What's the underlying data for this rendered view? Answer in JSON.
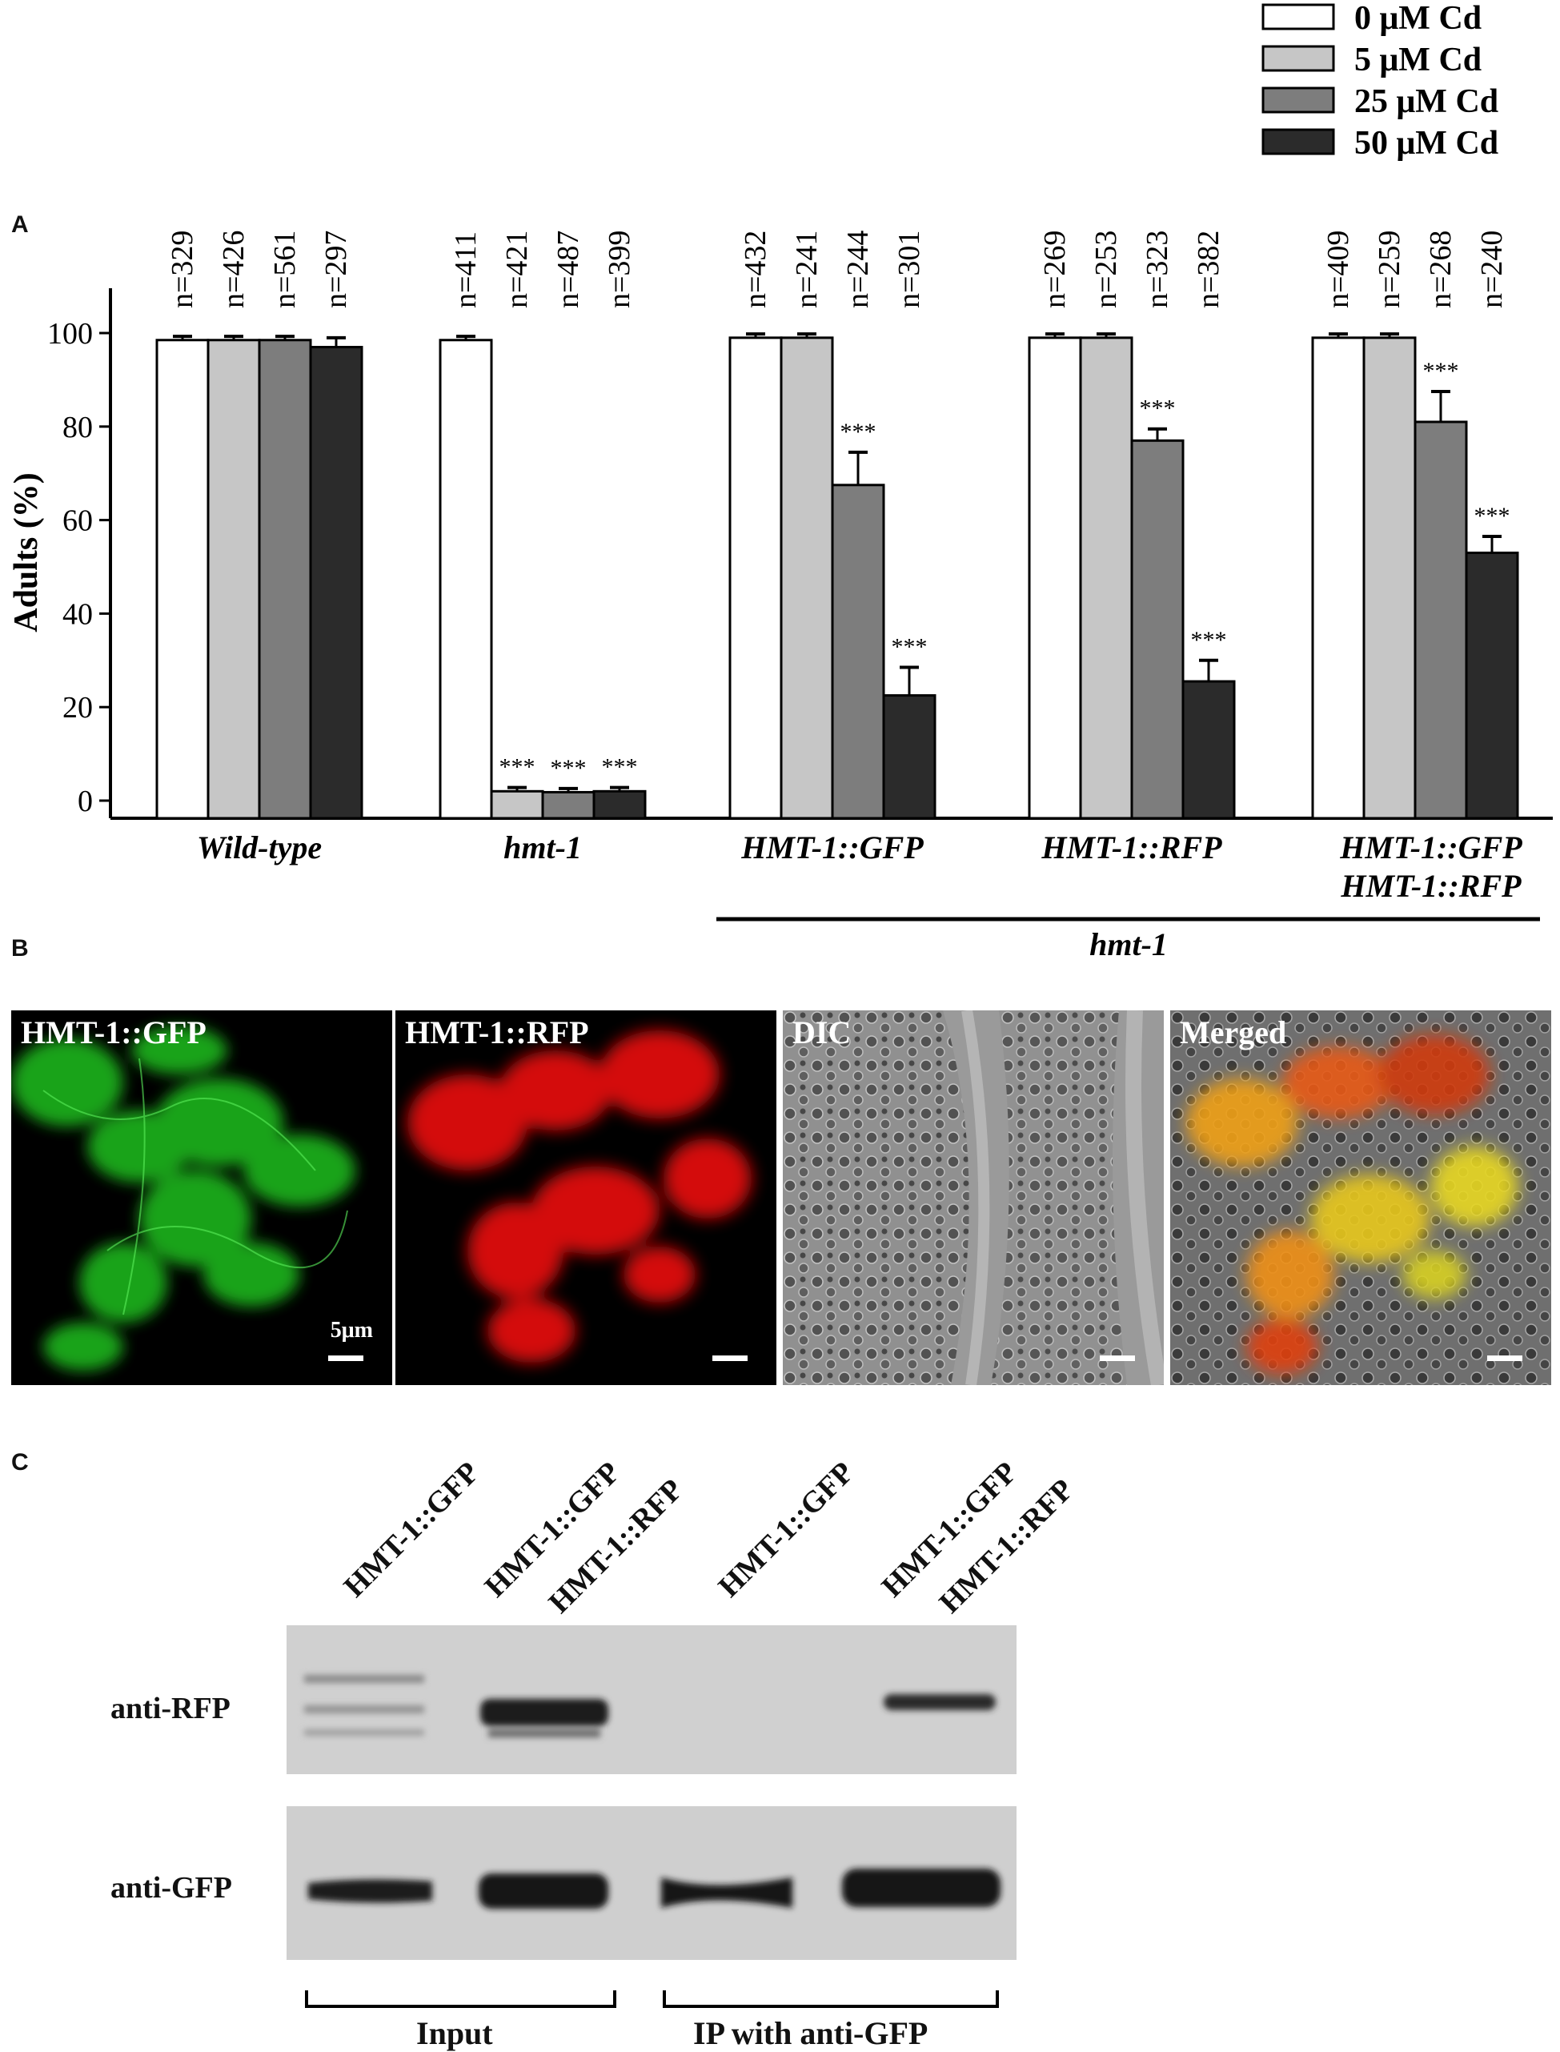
{
  "panels": {
    "a": "A",
    "b": "B",
    "c": "C"
  },
  "chart_data": {
    "type": "bar",
    "ylabel": "Adults (%)",
    "ylim": [
      0,
      100
    ],
    "yticks": [
      0,
      20,
      40,
      60,
      80,
      100
    ],
    "categories": [
      "Wild-type",
      "hmt-1",
      "HMT-1::GFP",
      "HMT-1::RFP",
      "HMT-1::GFP HMT-1::RFP"
    ],
    "category_lines": [
      [
        "Wild-type"
      ],
      [
        "hmt-1"
      ],
      [
        "HMT-1::GFP"
      ],
      [
        "HMT-1::RFP"
      ],
      [
        "HMT-1::GFP",
        "HMT-1::RFP"
      ]
    ],
    "group_bracket": {
      "label": "hmt-1",
      "categories": [
        "HMT-1::GFP",
        "HMT-1::RFP",
        "HMT-1::GFP HMT-1::RFP"
      ]
    },
    "legend": {
      "placement": "top-right"
    },
    "series": [
      {
        "name": "0 μM Cd",
        "color": "#ffffff",
        "values": [
          98.5,
          98.5,
          99,
          99,
          99
        ],
        "errors": [
          0.8,
          0.8,
          0.8,
          0.8,
          0.8
        ],
        "n": [
          "n=329",
          "n=411",
          "n=432",
          "n=269",
          "n=409"
        ],
        "sig": [
          "",
          "",
          "",
          "",
          ""
        ]
      },
      {
        "name": "5 μM Cd",
        "color": "#c6c6c6",
        "values": [
          98.5,
          2,
          99,
          99,
          99
        ],
        "errors": [
          0.8,
          0.8,
          0.8,
          0.8,
          0.8
        ],
        "n": [
          "n=426",
          "n=421",
          "n=241",
          "n=253",
          "n=259"
        ],
        "sig": [
          "",
          "***",
          "",
          "",
          ""
        ]
      },
      {
        "name": "25 μM Cd",
        "color": "#7d7d7d",
        "values": [
          98.5,
          1.8,
          67.5,
          77,
          81
        ],
        "errors": [
          0.8,
          0.8,
          7,
          2.5,
          6.5
        ],
        "n": [
          "n=561",
          "n=487",
          "n=244",
          "n=323",
          "n=268"
        ],
        "sig": [
          "",
          "***",
          "***",
          "***",
          "***"
        ]
      },
      {
        "name": "50 μM Cd",
        "color": "#2b2b2b",
        "values": [
          97,
          2,
          22.5,
          25.5,
          53
        ],
        "errors": [
          2,
          0.8,
          6,
          4.5,
          3.5
        ],
        "n": [
          "n=297",
          "n=399",
          "n=301",
          "n=382",
          "n=240"
        ],
        "sig": [
          "",
          "***",
          "***",
          "***",
          "***"
        ]
      }
    ]
  },
  "microscopy": {
    "images": [
      {
        "label": "HMT-1::GFP",
        "scale_label": "5μm"
      },
      {
        "label": "HMT-1::RFP"
      },
      {
        "label": "DIC"
      },
      {
        "label": "Merged"
      }
    ]
  },
  "western_blot": {
    "lane_labels": [
      "HMT-1::GFP",
      "HMT-1::GFP",
      "HMT-1::RFP",
      "HMT-1::GFP",
      "HMT-1::GFP",
      "HMT-1::RFP"
    ],
    "row_labels": [
      "anti-RFP",
      "anti-GFP"
    ],
    "group_labels": [
      "Input",
      "IP with anti-GFP"
    ]
  }
}
